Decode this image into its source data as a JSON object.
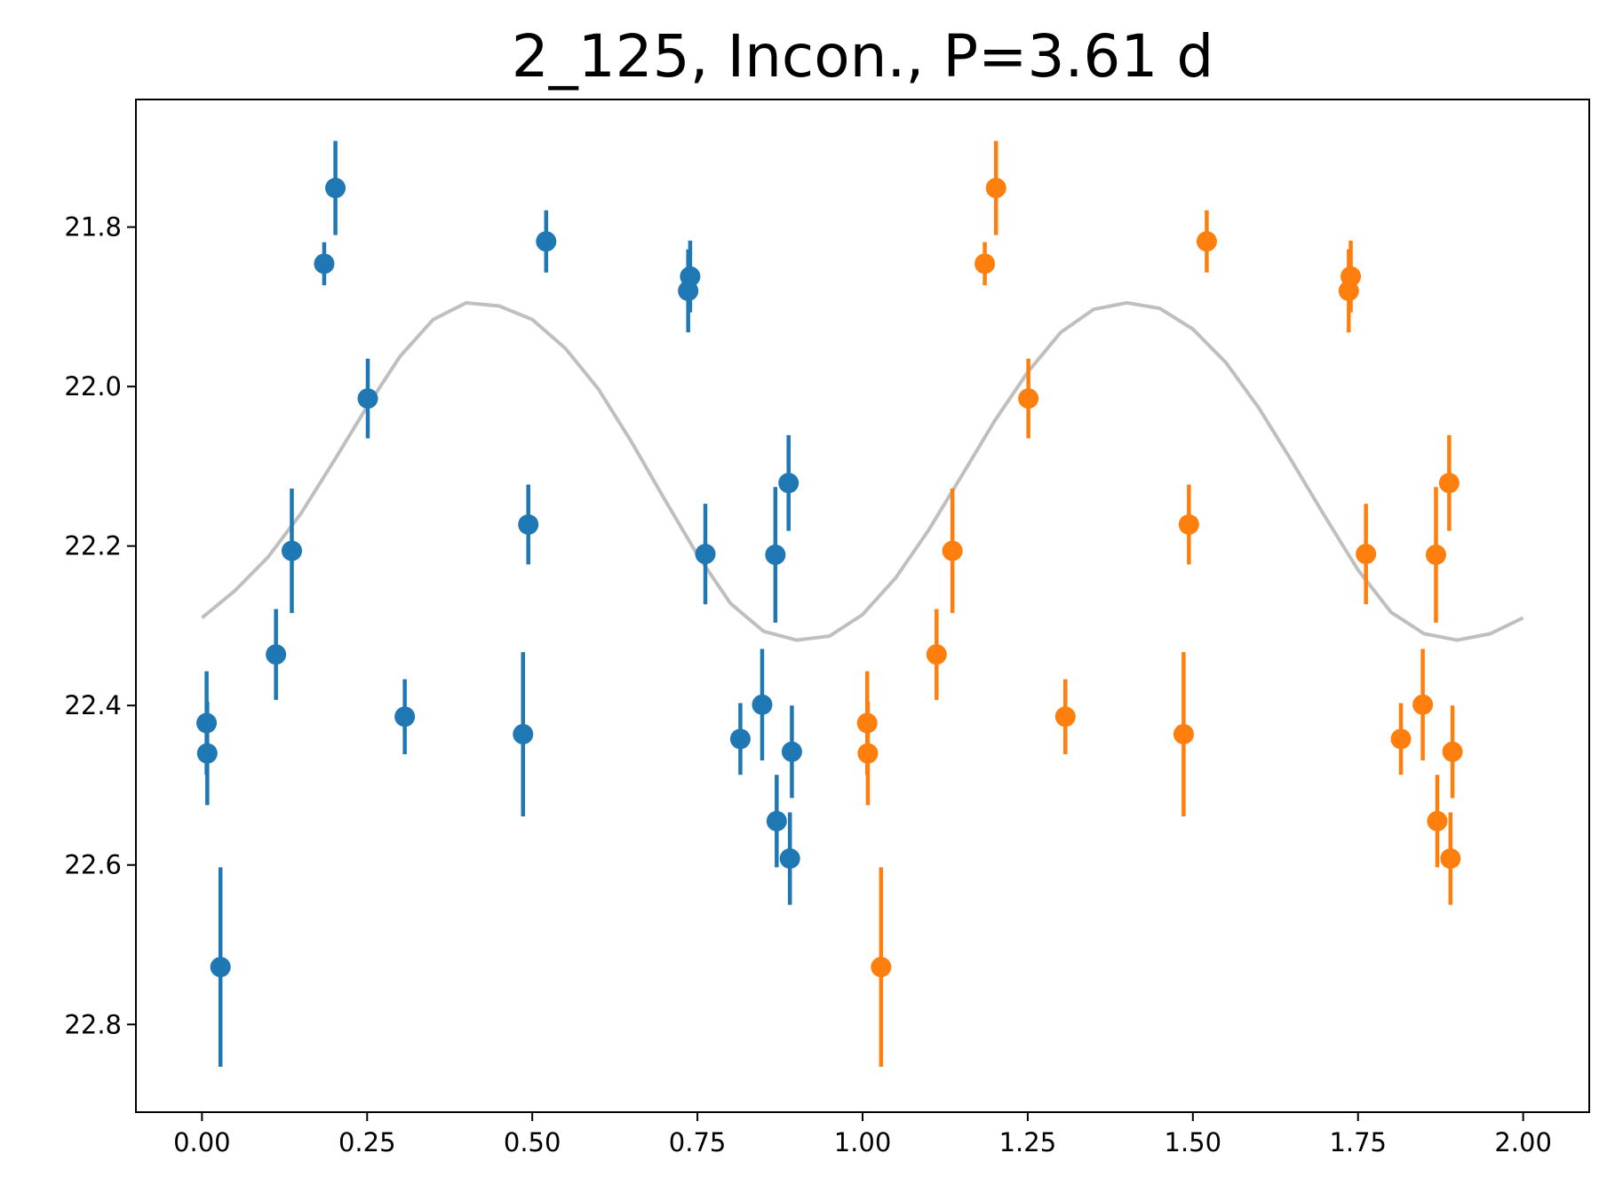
{
  "chart_data": {
    "type": "scatter",
    "title": "2_125, Incon., P=3.61 d",
    "xlabel": "",
    "ylabel": "",
    "xlim": [
      -0.1,
      2.1
    ],
    "ylim": [
      22.91,
      21.64
    ],
    "y_inverted": true,
    "grid": false,
    "x_ticks": [
      "0.00",
      "0.25",
      "0.50",
      "0.75",
      "1.00",
      "1.25",
      "1.50",
      "1.75",
      "2.00"
    ],
    "y_ticks": [
      "21.8",
      "22.0",
      "22.2",
      "22.4",
      "22.6",
      "22.8"
    ],
    "colors": {
      "phase_first": "#1f77b4",
      "phase_second": "#ff7f0e",
      "model": "#bfbfbf"
    },
    "points": [
      {
        "x": 0.007,
        "y": 22.422,
        "err": 0.065
      },
      {
        "x": 0.008,
        "y": 22.46,
        "err": 0.065
      },
      {
        "x": 0.028,
        "y": 22.728,
        "err": 0.125
      },
      {
        "x": 0.112,
        "y": 22.336,
        "err": 0.057
      },
      {
        "x": 0.136,
        "y": 22.206,
        "err": 0.078
      },
      {
        "x": 0.185,
        "y": 21.846,
        "err": 0.027
      },
      {
        "x": 0.202,
        "y": 21.751,
        "err": 0.059
      },
      {
        "x": 0.251,
        "y": 22.015,
        "err": 0.05
      },
      {
        "x": 0.307,
        "y": 22.414,
        "err": 0.047
      },
      {
        "x": 0.486,
        "y": 22.436,
        "err": 0.103
      },
      {
        "x": 0.494,
        "y": 22.173,
        "err": 0.05
      },
      {
        "x": 0.521,
        "y": 21.818,
        "err": 0.039
      },
      {
        "x": 0.736,
        "y": 21.88,
        "err": 0.052
      },
      {
        "x": 0.739,
        "y": 21.862,
        "err": 0.045
      },
      {
        "x": 0.762,
        "y": 22.21,
        "err": 0.063
      },
      {
        "x": 0.815,
        "y": 22.442,
        "err": 0.045
      },
      {
        "x": 0.848,
        "y": 22.399,
        "err": 0.07
      },
      {
        "x": 0.868,
        "y": 22.211,
        "err": 0.085
      },
      {
        "x": 0.87,
        "y": 22.545,
        "err": 0.058
      },
      {
        "x": 0.888,
        "y": 22.121,
        "err": 0.06
      },
      {
        "x": 0.89,
        "y": 22.592,
        "err": 0.058
      },
      {
        "x": 0.893,
        "y": 22.458,
        "err": 0.058
      }
    ],
    "model_curve": {
      "x": [
        0.0,
        0.05,
        0.1,
        0.15,
        0.2,
        0.25,
        0.3,
        0.35,
        0.4,
        0.45,
        0.5,
        0.55,
        0.6,
        0.65,
        0.7,
        0.75,
        0.8,
        0.85,
        0.9,
        0.95,
        1.0,
        1.05,
        1.1,
        1.15,
        1.2,
        1.25,
        1.3,
        1.35,
        1.4,
        1.45,
        1.5,
        1.55,
        1.6,
        1.65,
        1.7,
        1.75,
        1.8,
        1.85,
        1.9,
        1.95,
        2.0
      ],
      "y": [
        22.29,
        22.256,
        22.214,
        22.159,
        22.093,
        22.025,
        21.962,
        21.916,
        21.895,
        21.899,
        21.916,
        21.952,
        22.003,
        22.069,
        22.141,
        22.211,
        22.272,
        22.307,
        22.318,
        22.313,
        22.286,
        22.24,
        22.18,
        22.112,
        22.043,
        21.982,
        21.932,
        21.903,
        21.895,
        21.902,
        21.928,
        21.97,
        22.027,
        22.094,
        22.163,
        22.23,
        22.283,
        22.31,
        22.318,
        22.31,
        22.29
      ]
    }
  }
}
